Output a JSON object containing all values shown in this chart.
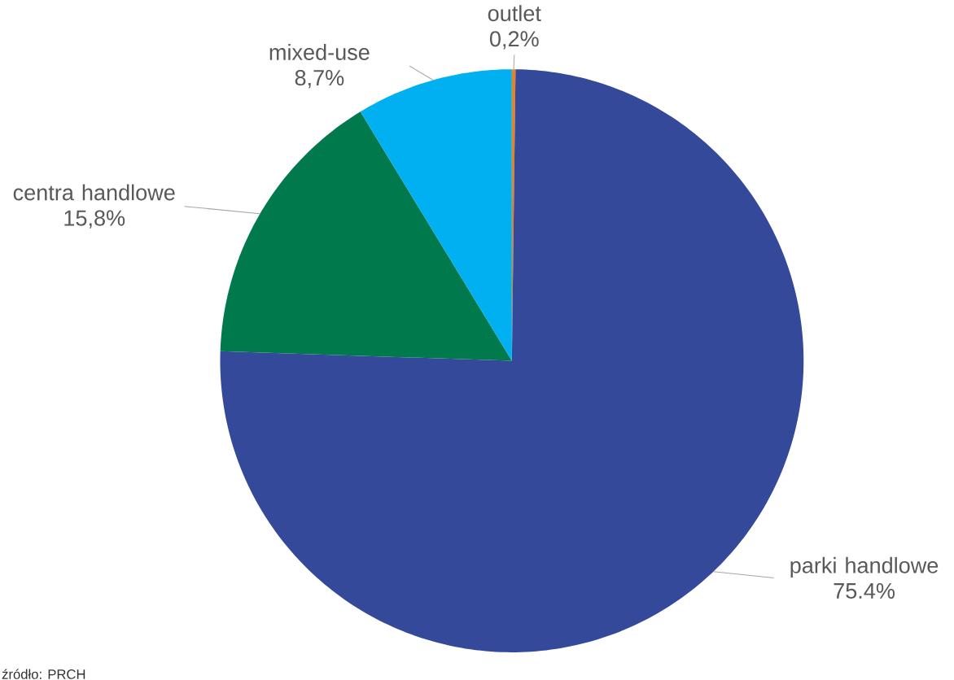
{
  "chart_data": {
    "type": "pie",
    "categories": [
      "outlet",
      "parki handlowe",
      "centra handlowe",
      "mixed-use"
    ],
    "values": [
      0.2,
      75.4,
      15.8,
      8.7
    ],
    "colors": [
      "#f07f1a",
      "#34499a",
      "#007a4d",
      "#00b0f0"
    ],
    "value_labels": [
      "0,2%",
      "75.4%",
      "15,8%",
      "8,7%"
    ],
    "annotations": [
      "źródło: PRCH"
    ]
  }
}
